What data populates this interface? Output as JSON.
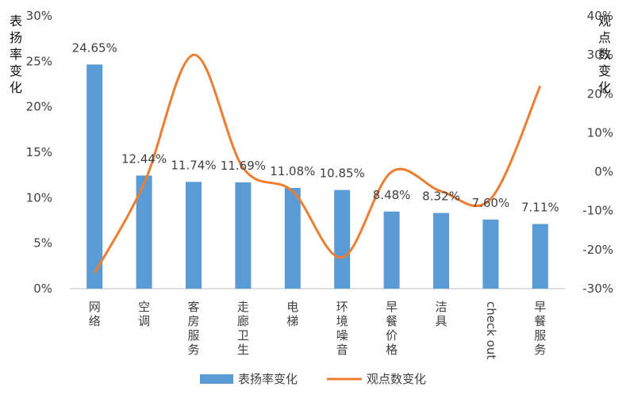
{
  "chart_data": {
    "type": "bar",
    "categories": [
      "网络",
      "空调",
      "客房服务",
      "走廊卫生",
      "电梯",
      "环境噪音",
      "早餐价格",
      "洁具",
      "check out",
      "早餐服务"
    ],
    "series": [
      {
        "name": "表扬率变化",
        "type": "bar",
        "axis": "left",
        "values": [
          24.65,
          12.44,
          11.74,
          11.69,
          11.08,
          10.85,
          8.48,
          8.32,
          7.6,
          7.11
        ],
        "data_labels": [
          "24.65%",
          "12.44%",
          "11.74%",
          "11.69%",
          "11.08%",
          "10.85%",
          "8.48%",
          "8.32%",
          "7.60%",
          "7.11%"
        ],
        "color": "#5b9bd5"
      },
      {
        "name": "观点数变化",
        "type": "line",
        "smooth": true,
        "axis": "right",
        "values": [
          -26,
          -3,
          30,
          1,
          -5,
          -22,
          0,
          -5,
          -7,
          22
        ],
        "color": "#ed7d31"
      }
    ],
    "ylabel": "表扬率变化",
    "y2label": "观点数变化",
    "ylim": [
      0,
      30
    ],
    "y2lim": [
      -30,
      40
    ],
    "yticks": [
      "0%",
      "5%",
      "10%",
      "15%",
      "20%",
      "25%",
      "30%"
    ],
    "y2ticks": [
      "-30%",
      "-20%",
      "-10%",
      "0%",
      "10%",
      "20%",
      "30%",
      "40%"
    ],
    "grid": false,
    "legend": "bottom"
  }
}
